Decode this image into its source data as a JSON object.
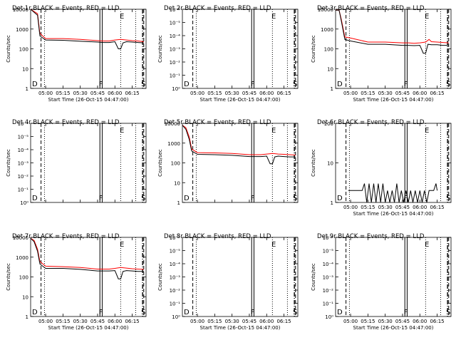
{
  "chart_data": [
    {
      "type": "line",
      "title": "Det 1r BLACK = Events, RED = LLD",
      "ylabel": "Counts/sec",
      "xlabel": "Start Time (26-Oct-15 04:47:00)",
      "scale": "log",
      "ylim": [
        1,
        10000
      ],
      "xlim": [
        "04:47",
        "06:27"
      ],
      "ytick_labels": [
        "1",
        "10",
        "100",
        "1000",
        "10000"
      ],
      "xtick_labels": [
        "05:00",
        "05:15",
        "05:30",
        "05:45",
        "06:00",
        "06:15"
      ],
      "markers": [
        "D",
        "F",
        "E",
        "S"
      ],
      "series": [
        {
          "color": "#ff0000",
          "x": [
            "04:47",
            "04:53",
            "04:55",
            "05:00",
            "05:15",
            "05:30",
            "05:45",
            "05:50",
            "05:55",
            "06:00",
            "06:05",
            "06:10",
            "06:15",
            "06:20",
            "06:25"
          ],
          "values": [
            10000,
            6000,
            600,
            330,
            330,
            300,
            260,
            250,
            250,
            280,
            300,
            280,
            260,
            250,
            230
          ]
        },
        {
          "color": "#000000",
          "x": [
            "04:47",
            "04:53",
            "04:55",
            "05:00",
            "05:15",
            "05:30",
            "05:45",
            "05:50",
            "05:55",
            "06:00",
            "06:03",
            "06:05",
            "06:07",
            "06:10",
            "06:15",
            "06:20",
            "06:25"
          ],
          "values": [
            10000,
            5000,
            450,
            280,
            270,
            240,
            220,
            210,
            210,
            230,
            100,
            100,
            200,
            230,
            220,
            210,
            200
          ]
        }
      ]
    },
    {
      "type": "line",
      "title": "Det 2r BLACK = Events, RED = LLD",
      "ylabel": "Counts/sec",
      "xlabel": "Start Time (26-Oct-15 04:47:00)",
      "scale": "log",
      "ylim": [
        1,
        1e-06
      ],
      "xlim": [
        "04:47",
        "06:27"
      ],
      "ytick_labels": [
        "10⁰",
        "10⁻¹",
        "10⁻²",
        "10⁻³",
        "10⁻⁴",
        "10⁻⁵",
        "10⁻⁶"
      ],
      "xtick_labels": [
        "05:00",
        "05:15",
        "05:30",
        "05:45",
        "06:00",
        "06:15"
      ],
      "markers": [
        "D",
        "F",
        "E",
        "S"
      ],
      "series": []
    },
    {
      "type": "line",
      "title": "Det 3r BLACK = Events, RED = LLD",
      "ylabel": "Counts/sec",
      "xlabel": "Start Time (26-Oct-15 04:47:00)",
      "scale": "log",
      "ylim": [
        1,
        10000
      ],
      "xlim": [
        "04:47",
        "06:27"
      ],
      "ytick_labels": [
        "1",
        "10",
        "100",
        "1000",
        "10000"
      ],
      "xtick_labels": [
        "05:00",
        "05:15",
        "05:30",
        "05:45",
        "06:00",
        "06:15"
      ],
      "markers": [
        "D",
        "F",
        "E",
        "S"
      ],
      "series": [
        {
          "color": "#ff0000",
          "x": [
            "04:47",
            "04:50",
            "04:52",
            "04:55",
            "05:00",
            "05:15",
            "05:30",
            "05:45",
            "05:50",
            "05:55",
            "06:00",
            "06:05",
            "06:08",
            "06:10",
            "06:15",
            "06:20",
            "06:25"
          ],
          "values": [
            9000,
            9000,
            3000,
            400,
            350,
            220,
            220,
            200,
            200,
            190,
            200,
            220,
            300,
            230,
            220,
            210,
            200
          ]
        },
        {
          "color": "#000000",
          "x": [
            "04:47",
            "04:50",
            "04:52",
            "04:55",
            "05:00",
            "05:15",
            "05:30",
            "05:45",
            "05:50",
            "05:55",
            "06:00",
            "06:03",
            "06:05",
            "06:07",
            "06:10",
            "06:15",
            "06:20",
            "06:25"
          ],
          "values": [
            9000,
            9000,
            2500,
            300,
            250,
            170,
            170,
            150,
            150,
            145,
            150,
            60,
            60,
            170,
            160,
            160,
            150,
            150
          ]
        }
      ]
    },
    {
      "type": "line",
      "title": "Det 4r BLACK = Events, RED = LLD",
      "ylabel": "Counts/sec",
      "xlabel": "",
      "scale": "log",
      "ylim": [
        1,
        1e-06
      ],
      "xlim": [
        "04:47",
        "06:27"
      ],
      "ytick_labels": [
        "10⁰",
        "10⁻¹",
        "10⁻²",
        "10⁻³",
        "10⁻⁴",
        "10⁻⁵",
        "10⁻⁶"
      ],
      "xtick_labels": [],
      "markers": [
        "D",
        "F",
        "E",
        "S"
      ],
      "series": []
    },
    {
      "type": "line",
      "title": "Det 5r BLACK = Events, RED = LLD",
      "ylabel": "Counts/sec",
      "xlabel": "",
      "scale": "log",
      "ylim": [
        1,
        10000
      ],
      "xlim": [
        "04:47",
        "06:27"
      ],
      "ytick_labels": [
        "1",
        "10",
        "100",
        "1000",
        "10000"
      ],
      "xtick_labels": [],
      "markers": [
        "D",
        "F",
        "E",
        "S"
      ],
      "series": [
        {
          "color": "#ff0000",
          "x": [
            "04:47",
            "04:50",
            "04:53",
            "04:55",
            "05:00",
            "05:15",
            "05:30",
            "05:45",
            "05:50",
            "05:55",
            "06:00",
            "06:05",
            "06:10",
            "06:15",
            "06:20",
            "06:25"
          ],
          "values": [
            8000,
            6000,
            2000,
            500,
            330,
            320,
            300,
            260,
            260,
            260,
            280,
            300,
            280,
            270,
            260,
            250
          ]
        },
        {
          "color": "#000000",
          "x": [
            "04:47",
            "04:50",
            "04:53",
            "04:55",
            "05:00",
            "05:15",
            "05:30",
            "05:45",
            "05:50",
            "05:55",
            "06:00",
            "06:03",
            "06:05",
            "06:07",
            "06:10",
            "06:15",
            "06:20",
            "06:25"
          ],
          "values": [
            8000,
            5000,
            1500,
            400,
            270,
            260,
            240,
            210,
            210,
            210,
            220,
            90,
            90,
            200,
            220,
            210,
            200,
            200
          ]
        }
      ]
    },
    {
      "type": "line",
      "title": "Det 6r BLACK = Events, RED = LLD",
      "ylabel": "Counts/sec",
      "xlabel": "Start Time (26-Oct-15 04:47:00)",
      "scale": "log",
      "ylim": [
        1,
        100
      ],
      "xlim": [
        "04:47",
        "06:27"
      ],
      "ytick_labels": [
        "1",
        "10",
        "100"
      ],
      "xtick_labels": [
        "05:00",
        "05:15",
        "05:30",
        "05:45",
        "06:00",
        "06:15"
      ],
      "markers": [
        "D",
        "F",
        "E",
        "S"
      ],
      "series": [
        {
          "color": "#000000",
          "x": [
            "04:58",
            "05:00",
            "05:10",
            "05:12",
            "05:14",
            "05:16",
            "05:18",
            "05:20",
            "05:22",
            "05:24",
            "05:26",
            "05:28",
            "05:30",
            "05:32",
            "05:34",
            "05:36",
            "05:38",
            "05:40",
            "05:42",
            "05:44",
            "05:46",
            "05:48",
            "05:50",
            "05:52",
            "05:54",
            "05:56",
            "05:58",
            "06:00",
            "06:02",
            "06:04",
            "06:06",
            "06:08",
            "06:10",
            "06:12",
            "06:14",
            "06:15"
          ],
          "values": [
            2,
            2,
            2,
            3,
            1,
            3,
            1,
            3,
            1,
            3,
            1,
            3,
            1,
            2,
            1,
            2,
            1,
            3,
            1,
            2,
            1,
            2,
            1,
            2,
            1,
            2,
            1,
            2,
            1,
            2,
            1,
            2,
            2,
            2,
            3,
            2
          ]
        }
      ]
    },
    {
      "type": "line",
      "title": "Det 7r BLACK = Events, RED = LLD",
      "ylabel": "Counts/sec",
      "xlabel": "Start Time (26-Oct-15 04:47:00)",
      "scale": "log",
      "ylim": [
        1,
        10000
      ],
      "xlim": [
        "04:47",
        "06:27"
      ],
      "ytick_labels": [
        "1",
        "10",
        "100",
        "1000",
        "10000"
      ],
      "xtick_labels": [
        "05:00",
        "05:15",
        "05:30",
        "05:45",
        "06:00",
        "06:15"
      ],
      "markers": [
        "D",
        "F",
        "E",
        "S"
      ],
      "series": [
        {
          "color": "#ff0000",
          "x": [
            "04:47",
            "04:50",
            "04:53",
            "04:55",
            "05:00",
            "05:15",
            "05:30",
            "05:45",
            "05:50",
            "05:55",
            "06:00",
            "06:05",
            "06:10",
            "06:15",
            "06:20",
            "06:25"
          ],
          "values": [
            9000,
            7000,
            2500,
            600,
            350,
            330,
            300,
            250,
            250,
            250,
            270,
            300,
            280,
            260,
            250,
            240
          ]
        },
        {
          "color": "#000000",
          "x": [
            "04:47",
            "04:50",
            "04:53",
            "04:55",
            "05:00",
            "05:15",
            "05:30",
            "05:45",
            "05:50",
            "05:55",
            "06:00",
            "06:03",
            "06:05",
            "06:07",
            "06:10",
            "06:15",
            "06:20",
            "06:25"
          ],
          "values": [
            9000,
            6000,
            2000,
            450,
            270,
            270,
            240,
            200,
            200,
            200,
            210,
            80,
            80,
            190,
            210,
            200,
            190,
            190
          ]
        }
      ]
    },
    {
      "type": "line",
      "title": "Det 8r BLACK = Events, RED = LLD",
      "ylabel": "Counts/sec",
      "xlabel": "Start Time (26-Oct-15 04:47:00)",
      "scale": "log",
      "ylim": [
        1,
        1e-06
      ],
      "xlim": [
        "04:47",
        "06:27"
      ],
      "ytick_labels": [
        "10⁰",
        "10⁻¹",
        "10⁻²",
        "10⁻³",
        "10⁻⁴",
        "10⁻⁵",
        "10⁻⁶"
      ],
      "xtick_labels": [
        "05:00",
        "05:15",
        "05:30",
        "05:45",
        "06:00",
        "06:15"
      ],
      "markers": [
        "D",
        "F",
        "E",
        "S"
      ],
      "series": []
    },
    {
      "type": "line",
      "title": "Det 9r BLACK = Events, RED = LLD",
      "ylabel": "Counts/sec",
      "xlabel": "Start Time (26-Oct-15 04:47:00)",
      "scale": "log",
      "ylim": [
        1,
        1e-06
      ],
      "xlim": [
        "04:47",
        "06:27"
      ],
      "ytick_labels": [
        "10⁰",
        "10⁻¹",
        "10⁻²",
        "10⁻³",
        "10⁻⁴",
        "10⁻⁵",
        "10⁻⁶"
      ],
      "xtick_labels": [
        "05:00",
        "05:15",
        "05:30",
        "05:45",
        "06:00",
        "06:15"
      ],
      "markers": [
        "D",
        "F",
        "E",
        "S"
      ],
      "series": []
    }
  ],
  "vertical_lines": {
    "dashed": [
      "04:56",
      "06:25"
    ],
    "dotted": [
      "04:59",
      "06:05",
      "06:18"
    ],
    "solid": [
      "05:47",
      "05:49"
    ],
    "dash_dot": [
      "06:24"
    ]
  }
}
